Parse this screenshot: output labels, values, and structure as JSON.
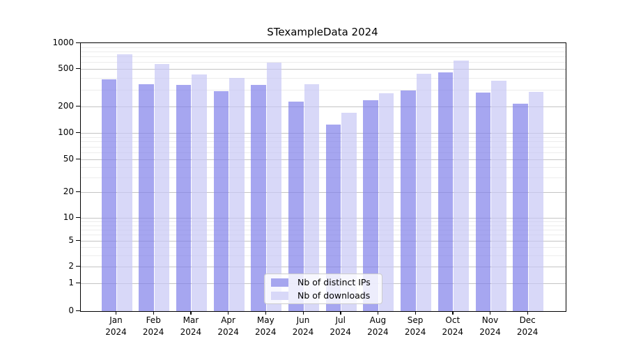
{
  "title": "STexampleData 2024",
  "legend": {
    "items": [
      {
        "label": "Nb of distinct IPs",
        "color": "#a6a6ef"
      },
      {
        "label": "Nb of downloads",
        "color": "#d8d8f8"
      }
    ]
  },
  "axis": {
    "y_ticks": [
      {
        "value": 1000,
        "label": "1000"
      },
      {
        "value": 500,
        "label": "500"
      },
      {
        "value": 200,
        "label": "200"
      },
      {
        "value": 100,
        "label": "100"
      },
      {
        "value": 50,
        "label": "50"
      },
      {
        "value": 20,
        "label": "20"
      },
      {
        "value": 10,
        "label": "10"
      },
      {
        "value": 5,
        "label": "5"
      },
      {
        "value": 2,
        "label": "2"
      },
      {
        "value": 1,
        "label": "1"
      },
      {
        "value": 0,
        "label": "0"
      }
    ],
    "minor_gridline_values": [
      3,
      4,
      6,
      7,
      8,
      9,
      30,
      40,
      60,
      70,
      80,
      90,
      300,
      400,
      600,
      700,
      800,
      900
    ],
    "x_label_year": "2024"
  },
  "colors": {
    "ips_bar": "rgba(128,128,234,0.7)",
    "downloads_bar": "rgba(199,199,245,0.7)",
    "grid_major": "#c4c4c4",
    "grid_minor": "#ececec",
    "spine": "#000000"
  },
  "chart_data": {
    "type": "bar",
    "title": "STexampleData 2024",
    "categories": [
      "Jan",
      "Feb",
      "Mar",
      "Apr",
      "May",
      "Jun",
      "Jul",
      "Aug",
      "Sep",
      "Oct",
      "Nov",
      "Dec"
    ],
    "year": "2024",
    "series": [
      {
        "name": "Nb of distinct IPs",
        "values": [
          390,
          345,
          340,
          290,
          340,
          225,
          125,
          235,
          295,
          460,
          280,
          215
        ]
      },
      {
        "name": "Nb of downloads",
        "values": [
          740,
          570,
          435,
          400,
          590,
          345,
          170,
          275,
          445,
          630,
          375,
          285
        ]
      }
    ],
    "yscale": "symlog",
    "y_ticks": [
      0,
      1,
      2,
      5,
      10,
      20,
      50,
      100,
      200,
      500,
      1000
    ],
    "ylim": [
      0,
      1000
    ],
    "xlabel": "",
    "ylabel": "",
    "grid": true,
    "legend_position": "lower center"
  }
}
